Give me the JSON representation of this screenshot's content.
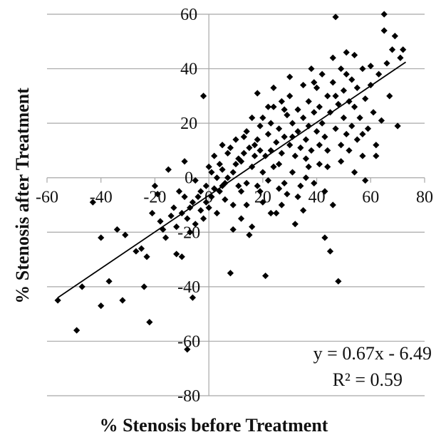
{
  "chart_data": {
    "type": "scatter",
    "title": "",
    "xlabel": "% Stenosis before Treatment",
    "ylabel": "% Stenosis after Treatment",
    "xlim": [
      -60,
      80
    ],
    "ylim": [
      -80,
      60
    ],
    "xticks": [
      -60,
      -40,
      -20,
      0,
      20,
      40,
      60,
      80
    ],
    "yticks": [
      -80,
      -60,
      -40,
      -20,
      0,
      20,
      40,
      60
    ],
    "grid": "horizontal",
    "trendline": {
      "slope": 0.67,
      "intercept": -6.49,
      "x_range": [
        -56,
        73
      ]
    },
    "annotations": [
      "y = 0.67x - 6.49",
      "R² = 0.59"
    ],
    "series": [
      {
        "points": [
          [
            -56,
            -45
          ],
          [
            -49,
            -56
          ],
          [
            -47,
            -40
          ],
          [
            -43,
            -9
          ],
          [
            -40,
            -47
          ],
          [
            -40,
            -22
          ],
          [
            -37,
            -38
          ],
          [
            -34,
            -19
          ],
          [
            -32,
            -45
          ],
          [
            -31,
            -21
          ],
          [
            -27,
            -27
          ],
          [
            -25,
            -26
          ],
          [
            -24,
            -40
          ],
          [
            -23,
            -29
          ],
          [
            -22,
            -53
          ],
          [
            -21,
            -13
          ],
          [
            -20,
            -3
          ],
          [
            -19,
            -6
          ],
          [
            -18,
            -16
          ],
          [
            -17,
            -19
          ],
          [
            -16,
            -22
          ],
          [
            -15,
            3
          ],
          [
            -14,
            -14
          ],
          [
            -13,
            -11
          ],
          [
            -12,
            -28
          ],
          [
            -12,
            -18
          ],
          [
            -11,
            -5
          ],
          [
            -10,
            -29
          ],
          [
            -10,
            -13
          ],
          [
            -9,
            6
          ],
          [
            -9,
            -7
          ],
          [
            -8,
            -15
          ],
          [
            -8,
            -63
          ],
          [
            -7,
            -11
          ],
          [
            -7,
            -20
          ],
          [
            -6,
            -9
          ],
          [
            -5,
            -17
          ],
          [
            -5,
            -1
          ],
          [
            -4,
            -7
          ],
          [
            -3,
            -12
          ],
          [
            -3,
            -5
          ],
          [
            -2,
            30
          ],
          [
            -2,
            -15
          ],
          [
            -1,
            -9
          ],
          [
            -1,
            -3
          ],
          [
            0,
            4
          ],
          [
            0,
            -11
          ],
          [
            1,
            -7
          ],
          [
            1,
            2
          ],
          [
            2,
            -4
          ],
          [
            3,
            -13
          ],
          [
            3,
            0
          ],
          [
            4,
            5
          ],
          [
            4,
            -5
          ],
          [
            5,
            -3
          ],
          [
            5,
            3
          ],
          [
            6,
            -8
          ],
          [
            7,
            0
          ],
          [
            7,
            9
          ],
          [
            8,
            11
          ],
          [
            8,
            -35
          ],
          [
            9,
            -10
          ],
          [
            9,
            2
          ],
          [
            10,
            5
          ],
          [
            10,
            14
          ],
          [
            11,
            7
          ],
          [
            11,
            -3
          ],
          [
            12,
            6
          ],
          [
            12,
            -5
          ],
          [
            13,
            9
          ],
          [
            13,
            15
          ],
          [
            14,
            -2
          ],
          [
            14,
            17
          ],
          [
            15,
            -21
          ],
          [
            15,
            11
          ],
          [
            16,
            -18
          ],
          [
            16,
            4
          ],
          [
            17,
            8
          ],
          [
            17,
            12
          ],
          [
            18,
            -3
          ],
          [
            18,
            14
          ],
          [
            19,
            -5
          ],
          [
            19,
            19
          ],
          [
            20,
            22
          ],
          [
            20,
            2
          ],
          [
            21,
            -36
          ],
          [
            21,
            8
          ],
          [
            22,
            16
          ],
          [
            22,
            -1
          ],
          [
            23,
            10
          ],
          [
            23,
            20
          ],
          [
            24,
            26
          ],
          [
            24,
            4
          ],
          [
            25,
            -13
          ],
          [
            25,
            13
          ],
          [
            26,
            18
          ],
          [
            26,
            5
          ],
          [
            27,
            28
          ],
          [
            27,
            9
          ],
          [
            28,
            -2
          ],
          [
            28,
            15
          ],
          [
            29,
            23
          ],
          [
            29,
            -6
          ],
          [
            30,
            12
          ],
          [
            30,
            30
          ],
          [
            31,
            2
          ],
          [
            31,
            20
          ],
          [
            32,
            8
          ],
          [
            32,
            -17
          ],
          [
            33,
            17
          ],
          [
            33,
            25
          ],
          [
            34,
            11
          ],
          [
            34,
            -3
          ],
          [
            35,
            22
          ],
          [
            35,
            34
          ],
          [
            36,
            14
          ],
          [
            36,
            7
          ],
          [
            37,
            28
          ],
          [
            37,
            19
          ],
          [
            38,
            40
          ],
          [
            38,
            10
          ],
          [
            39,
            24
          ],
          [
            39,
            -2
          ],
          [
            40,
            17
          ],
          [
            40,
            33
          ],
          [
            41,
            12
          ],
          [
            41,
            26
          ],
          [
            42,
            38
          ],
          [
            42,
            20
          ],
          [
            43,
            -22
          ],
          [
            43,
            15
          ],
          [
            44,
            30
          ],
          [
            44,
            10
          ],
          [
            45,
            24
          ],
          [
            45,
            -27
          ],
          [
            46,
            44
          ],
          [
            46,
            35
          ],
          [
            47,
            18
          ],
          [
            47,
            59
          ],
          [
            48,
            27
          ],
          [
            48,
            -38
          ],
          [
            49,
            12
          ],
          [
            49,
            40
          ],
          [
            50,
            22
          ],
          [
            50,
            32
          ],
          [
            51,
            46
          ],
          [
            51,
            16
          ],
          [
            52,
            28
          ],
          [
            52,
            10
          ],
          [
            53,
            36
          ],
          [
            53,
            19
          ],
          [
            54,
            26
          ],
          [
            54,
            45
          ],
          [
            55,
            14
          ],
          [
            55,
            33
          ],
          [
            56,
            22
          ],
          [
            57,
            40
          ],
          [
            57,
            8
          ],
          [
            58,
            29
          ],
          [
            59,
            18
          ],
          [
            60,
            34
          ],
          [
            60,
            41
          ],
          [
            61,
            24
          ],
          [
            62,
            12
          ],
          [
            63,
            38
          ],
          [
            64,
            21
          ],
          [
            65,
            60
          ],
          [
            65,
            54
          ],
          [
            66,
            42
          ],
          [
            67,
            30
          ],
          [
            68,
            47
          ],
          [
            69,
            52
          ],
          [
            70,
            19
          ],
          [
            71,
            44
          ],
          [
            72,
            47
          ],
          [
            -6,
            -44
          ],
          [
            12,
            -15
          ],
          [
            27,
            -10
          ],
          [
            36,
            0
          ],
          [
            43,
            -5
          ],
          [
            18,
            31
          ],
          [
            22,
            26
          ],
          [
            30,
            37
          ],
          [
            35,
            -12
          ],
          [
            9,
            -19
          ],
          [
            14,
            -10
          ],
          [
            5,
            12
          ],
          [
            20,
            -9
          ],
          [
            41,
            5
          ],
          [
            26,
            -4
          ],
          [
            46,
            -10
          ],
          [
            54,
            2
          ],
          [
            33,
            -7
          ],
          [
            24,
            33
          ],
          [
            39,
            35
          ],
          [
            57,
            16
          ],
          [
            44,
            4
          ],
          [
            62,
            8
          ],
          [
            28,
            25
          ],
          [
            16,
            22
          ],
          [
            47,
            30
          ],
          [
            51,
            38
          ],
          [
            19,
            10
          ],
          [
            23,
            -13
          ],
          [
            31,
            15
          ],
          [
            6,
            -2
          ],
          [
            2,
            8
          ],
          [
            37,
            4
          ],
          [
            49,
            6
          ],
          [
            58,
            -1
          ]
        ]
      }
    ]
  }
}
